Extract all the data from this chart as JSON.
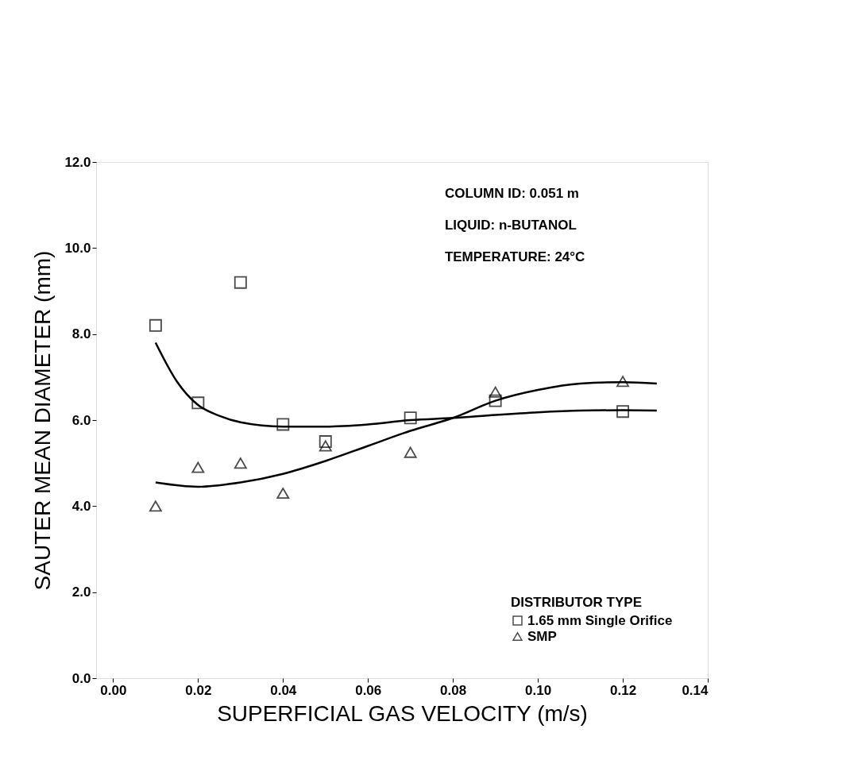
{
  "chart_data": {
    "type": "scatter",
    "xlabel": "SUPERFICIAL GAS VELOCITY (m/s)",
    "ylabel": "SAUTER MEAN DIAMETER (mm)",
    "legend_title": "DISTRIBUTOR TYPE",
    "legend": "bottom right",
    "grid": false,
    "annotations": [
      "COLUMN ID: 0.051 m",
      "LIQUID: n-BUTANOL",
      "TEMPERATURE: 24°C"
    ],
    "x": [
      0.01,
      0.02,
      0.03,
      0.04,
      0.05,
      0.07,
      0.09,
      0.12
    ],
    "xlim": [
      -0.004,
      0.14
    ],
    "xticks": [
      {
        "value": 0,
        "label": "0.00"
      },
      {
        "value": 0.02,
        "label": "0.02"
      },
      {
        "value": 0.04,
        "label": "0.04"
      },
      {
        "value": 0.06,
        "label": "0.06"
      },
      {
        "value": 0.08,
        "label": "0.08"
      },
      {
        "value": 0.1,
        "label": "0.10"
      },
      {
        "value": 0.12,
        "label": "0.12"
      },
      {
        "value": 0.14,
        "label": "0.14"
      }
    ],
    "ylim": [
      0,
      12
    ],
    "yticks": [
      {
        "value": 0,
        "label": "0.0"
      },
      {
        "value": 2,
        "label": "2.0"
      },
      {
        "value": 4,
        "label": "4.0"
      },
      {
        "value": 6,
        "label": "6.0"
      },
      {
        "value": 8,
        "label": "8.0"
      },
      {
        "value": 10,
        "label": "10.0"
      },
      {
        "value": 12,
        "label": "12.0"
      }
    ],
    "series": [
      {
        "name": "1.65 mm Single Orifice",
        "color": "#000000",
        "marker": "square",
        "values": [
          8.2,
          6.4,
          9.2,
          5.9,
          5.5,
          6.05,
          6.45,
          6.2
        ]
      },
      {
        "name": "SMP",
        "color": "#000000",
        "marker": "triangle",
        "values": [
          4.0,
          4.9,
          5.0,
          4.3,
          5.4,
          5.25,
          6.65,
          6.9
        ]
      },
      {
        "type": "line",
        "color": "#000000",
        "line_style": "solid",
        "x": [
          0.01,
          0.015,
          0.02,
          0.025,
          0.03,
          0.04,
          0.05,
          0.06,
          0.07,
          0.08,
          0.09,
          0.1,
          0.11,
          0.12,
          0.128
        ],
        "values": [
          7.8,
          6.9,
          6.35,
          6.1,
          5.95,
          5.85,
          5.85,
          5.9,
          6.0,
          6.05,
          6.12,
          6.18,
          6.22,
          6.23,
          6.22
        ]
      },
      {
        "type": "line",
        "color": "#000000",
        "line_style": "solid",
        "x": [
          0.01,
          0.02,
          0.03,
          0.04,
          0.05,
          0.06,
          0.07,
          0.08,
          0.09,
          0.1,
          0.11,
          0.12,
          0.128
        ],
        "values": [
          4.55,
          4.45,
          4.55,
          4.75,
          5.05,
          5.4,
          5.75,
          6.05,
          6.45,
          6.7,
          6.85,
          6.88,
          6.85
        ]
      }
    ]
  }
}
